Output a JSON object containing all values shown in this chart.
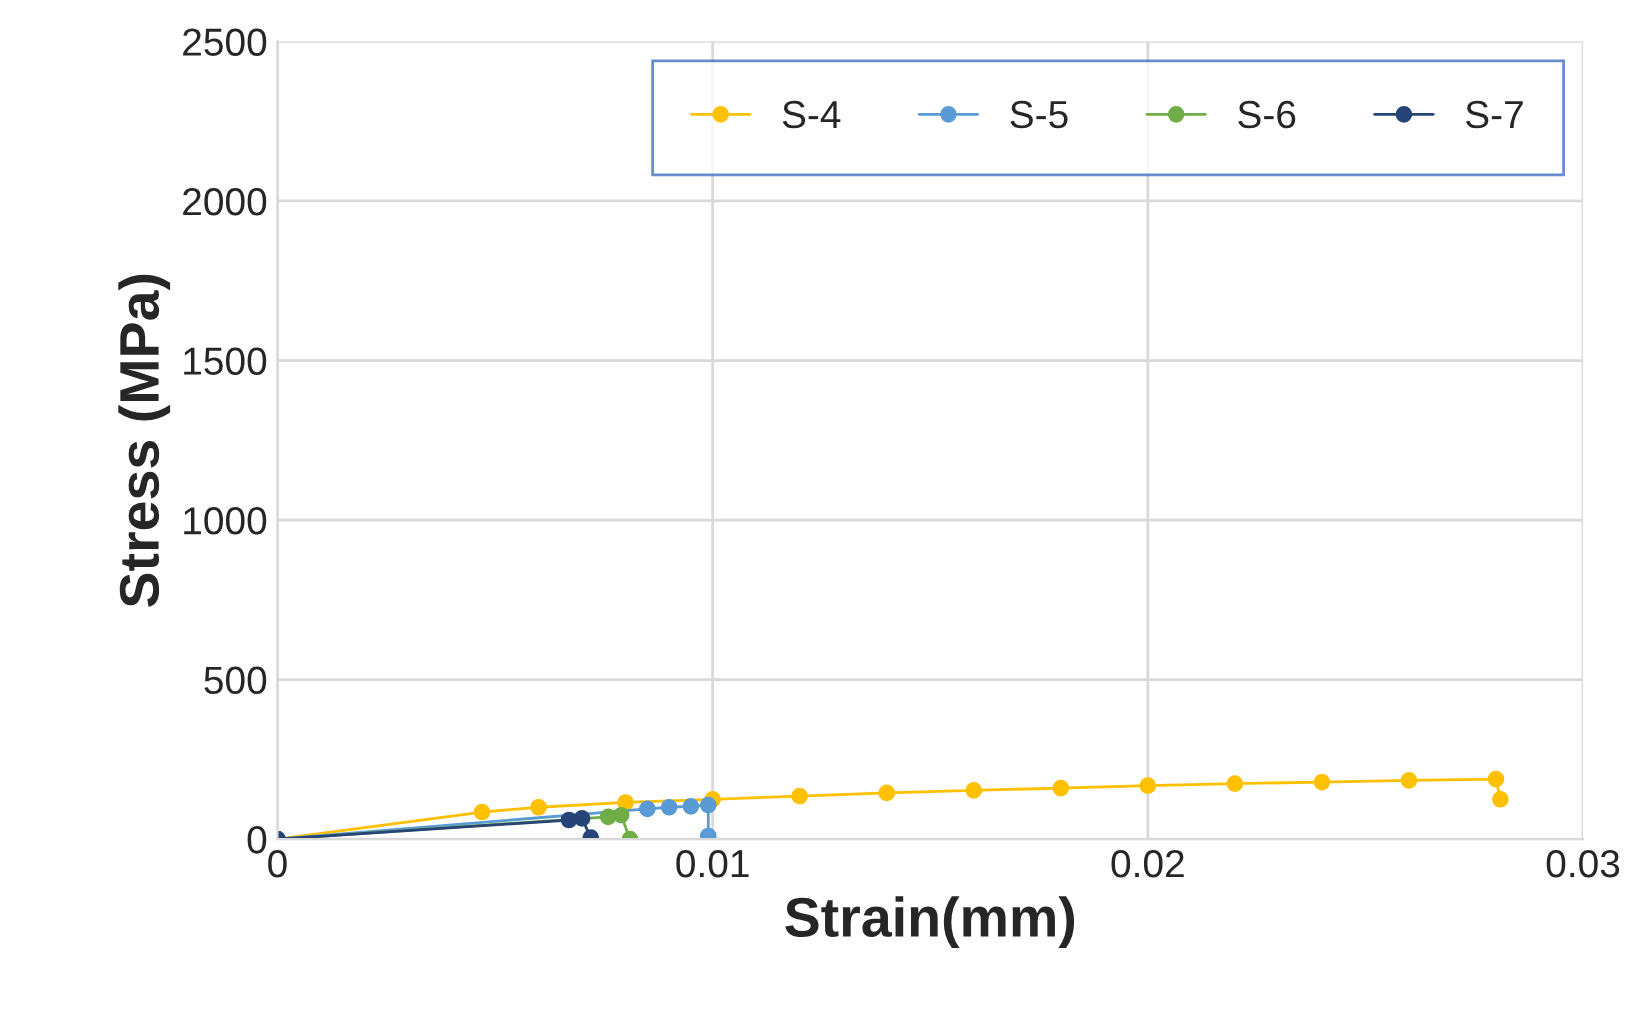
{
  "chart_data": {
    "type": "line",
    "xlabel": "Strain(mm)",
    "ylabel": "Stress (MPa)",
    "xlim": [
      0,
      0.03
    ],
    "xticks": [
      0,
      0.01,
      0.02,
      0.03
    ],
    "ylim": [
      0,
      2500
    ],
    "yticks": [
      0,
      500,
      1000,
      1500,
      2000,
      2500
    ],
    "grid": true,
    "legend": "top right",
    "marker": "circle",
    "line_style": "solid",
    "series": [
      {
        "name": "S-4",
        "color": "#ffc000",
        "x": [
          0,
          0.0047,
          0.006,
          0.008,
          0.01,
          0.012,
          0.014,
          0.016,
          0.018,
          0.02,
          0.022,
          0.024,
          0.026,
          0.028,
          0.0281
        ],
        "values": [
          0,
          85,
          100,
          115,
          125,
          135,
          145,
          153,
          160,
          168,
          174,
          179,
          184,
          188,
          125
        ]
      },
      {
        "name": "S-5",
        "color": "#5b9bd5",
        "x": [
          0,
          0.0085,
          0.009,
          0.0095,
          0.0099,
          0.0099
        ],
        "values": [
          0,
          95,
          100,
          103,
          107,
          10
        ]
      },
      {
        "name": "S-6",
        "color": "#70ad47",
        "x": [
          0,
          0.0076,
          0.0079,
          0.0081
        ],
        "values": [
          0,
          70,
          75,
          0
        ]
      },
      {
        "name": "S-7",
        "color": "#264478",
        "x": [
          0,
          0.0067,
          0.007,
          0.0072
        ],
        "values": [
          0,
          60,
          65,
          5
        ]
      }
    ]
  }
}
